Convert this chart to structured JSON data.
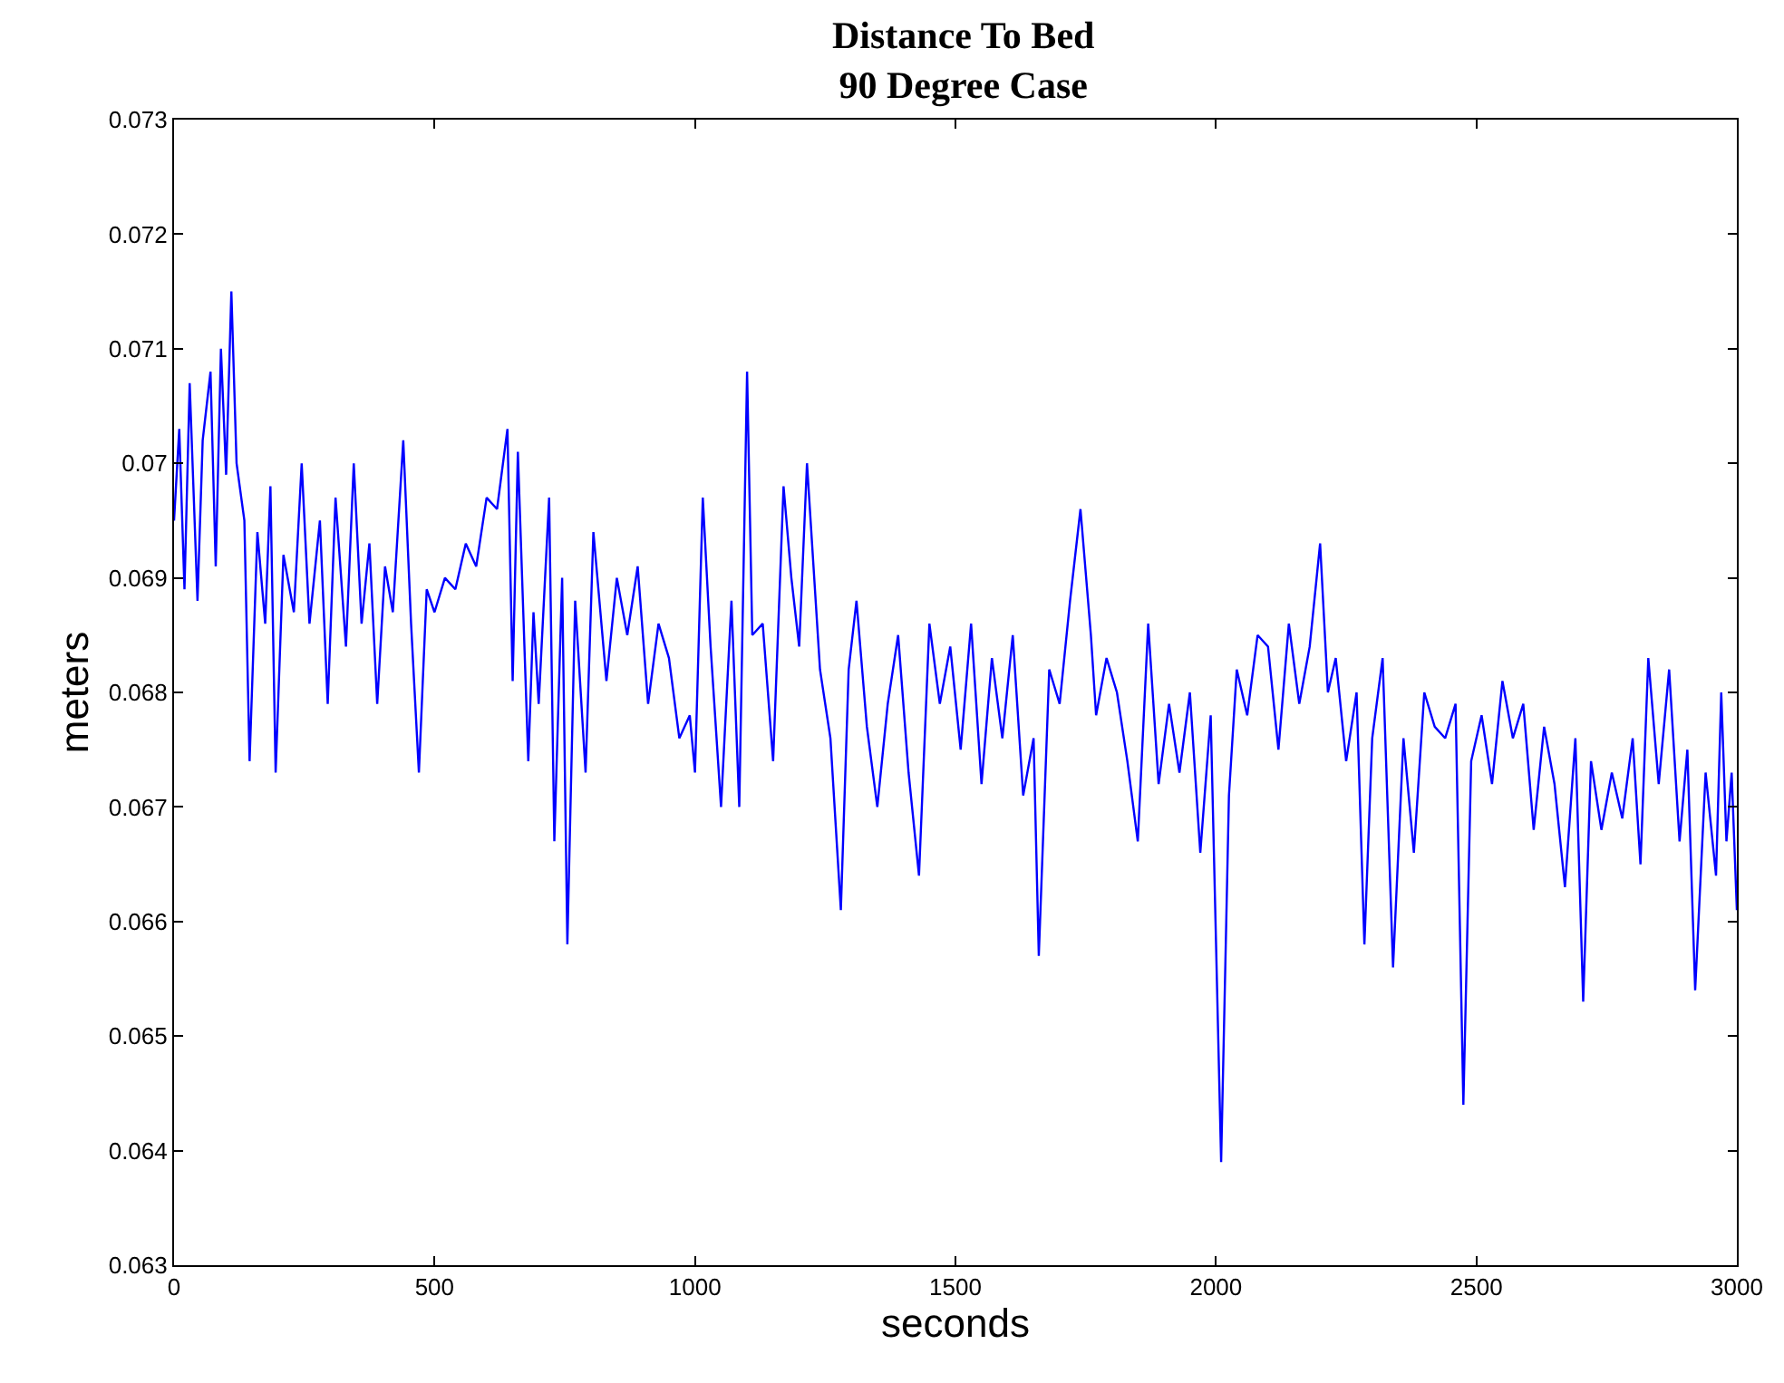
{
  "chart_data": {
    "type": "line",
    "title": "Distance To Bed\n90 Degree Case",
    "xlabel": "seconds",
    "ylabel": "meters",
    "xlim": [
      0,
      3000
    ],
    "xticks": [
      0,
      500,
      1000,
      1500,
      2000,
      2500,
      3000
    ],
    "ylim": [
      0.063,
      0.073
    ],
    "yticks": [
      0.063,
      0.064,
      0.065,
      0.066,
      0.067,
      0.068,
      0.069,
      0.07,
      0.071,
      0.072,
      0.073
    ],
    "marker": "none",
    "line_style": "solid",
    "x": [
      0,
      10,
      20,
      30,
      45,
      55,
      70,
      80,
      90,
      100,
      110,
      120,
      135,
      145,
      160,
      175,
      185,
      195,
      210,
      230,
      245,
      260,
      280,
      295,
      310,
      330,
      345,
      360,
      375,
      390,
      405,
      420,
      440,
      455,
      470,
      485,
      500,
      520,
      540,
      560,
      580,
      600,
      620,
      640,
      650,
      660,
      680,
      690,
      700,
      720,
      730,
      745,
      755,
      770,
      790,
      805,
      830,
      850,
      870,
      890,
      910,
      930,
      950,
      970,
      990,
      1000,
      1015,
      1030,
      1050,
      1070,
      1085,
      1100,
      1110,
      1130,
      1150,
      1170,
      1185,
      1200,
      1215,
      1240,
      1260,
      1280,
      1295,
      1310,
      1330,
      1350,
      1370,
      1390,
      1410,
      1430,
      1450,
      1470,
      1490,
      1510,
      1530,
      1550,
      1570,
      1590,
      1610,
      1630,
      1650,
      1660,
      1680,
      1700,
      1720,
      1740,
      1760,
      1770,
      1790,
      1810,
      1830,
      1850,
      1870,
      1890,
      1910,
      1930,
      1950,
      1970,
      1990,
      2010,
      2025,
      2040,
      2060,
      2080,
      2100,
      2120,
      2140,
      2160,
      2180,
      2200,
      2215,
      2230,
      2250,
      2270,
      2285,
      2300,
      2320,
      2340,
      2360,
      2380,
      2400,
      2420,
      2440,
      2460,
      2475,
      2490,
      2510,
      2530,
      2550,
      2570,
      2590,
      2610,
      2630,
      2650,
      2670,
      2690,
      2705,
      2720,
      2740,
      2760,
      2780,
      2800,
      2815,
      2830,
      2850,
      2870,
      2890,
      2905,
      2920,
      2940,
      2960,
      2970,
      2980,
      2990,
      3000
    ],
    "series": [
      {
        "color": "#0000ff",
        "values": [
          0.0695,
          0.0703,
          0.0689,
          0.0707,
          0.0688,
          0.0702,
          0.0708,
          0.0691,
          0.071,
          0.0699,
          0.0715,
          0.07,
          0.0695,
          0.0674,
          0.0694,
          0.0686,
          0.0698,
          0.0673,
          0.0692,
          0.0687,
          0.07,
          0.0686,
          0.0695,
          0.0679,
          0.0697,
          0.0684,
          0.07,
          0.0686,
          0.0693,
          0.0679,
          0.0691,
          0.0687,
          0.0702,
          0.0686,
          0.0673,
          0.0689,
          0.0687,
          0.069,
          0.0689,
          0.0693,
          0.0691,
          0.0697,
          0.0696,
          0.0703,
          0.0681,
          0.0701,
          0.0674,
          0.0687,
          0.0679,
          0.0697,
          0.0667,
          0.069,
          0.0658,
          0.0688,
          0.0673,
          0.0694,
          0.0681,
          0.069,
          0.0685,
          0.0691,
          0.0679,
          0.0686,
          0.0683,
          0.0676,
          0.0678,
          0.0673,
          0.0697,
          0.0684,
          0.067,
          0.0688,
          0.067,
          0.0708,
          0.0685,
          0.0686,
          0.0674,
          0.0698,
          0.069,
          0.0684,
          0.07,
          0.0682,
          0.0676,
          0.0661,
          0.0682,
          0.0688,
          0.0677,
          0.067,
          0.0679,
          0.0685,
          0.0673,
          0.0664,
          0.0686,
          0.0679,
          0.0684,
          0.0675,
          0.0686,
          0.0672,
          0.0683,
          0.0676,
          0.0685,
          0.0671,
          0.0676,
          0.0657,
          0.0682,
          0.0679,
          0.0688,
          0.0696,
          0.0685,
          0.0678,
          0.0683,
          0.068,
          0.0674,
          0.0667,
          0.0686,
          0.0672,
          0.0679,
          0.0673,
          0.068,
          0.0666,
          0.0678,
          0.0639,
          0.0671,
          0.0682,
          0.0678,
          0.0685,
          0.0684,
          0.0675,
          0.0686,
          0.0679,
          0.0684,
          0.0693,
          0.068,
          0.0683,
          0.0674,
          0.068,
          0.0658,
          0.0676,
          0.0683,
          0.0656,
          0.0676,
          0.0666,
          0.068,
          0.0677,
          0.0676,
          0.0679,
          0.0644,
          0.0674,
          0.0678,
          0.0672,
          0.0681,
          0.0676,
          0.0679,
          0.0668,
          0.0677,
          0.0672,
          0.0663,
          0.0676,
          0.0653,
          0.0674,
          0.0668,
          0.0673,
          0.0669,
          0.0676,
          0.0665,
          0.0683,
          0.0672,
          0.0682,
          0.0667,
          0.0675,
          0.0654,
          0.0673,
          0.0664,
          0.068,
          0.0667,
          0.0673,
          0.0661
        ]
      }
    ]
  }
}
